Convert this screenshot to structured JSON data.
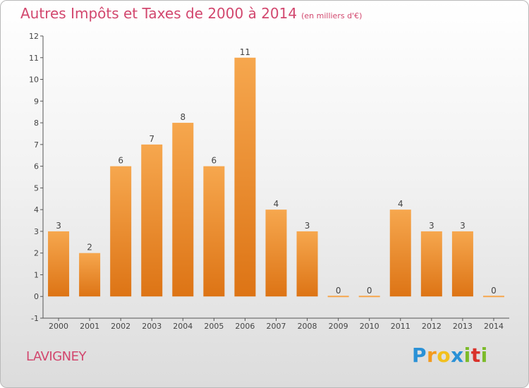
{
  "title": "Autres Impôts et Taxes de 2000 à 2014",
  "unit": "(en milliers d'€)",
  "commune": "LAVIGNEY",
  "logo": {
    "p": "P",
    "r": "r",
    "o": "o",
    "x": "x",
    "i": "i",
    "t": "t",
    "i2": "i"
  },
  "colors": {
    "bar_top": "#f6a74e",
    "bar_bottom": "#dd7415",
    "title": "#d2476e"
  },
  "chart_data": {
    "type": "bar",
    "title": "Autres Impôts et Taxes de 2000 à 2014",
    "subtitle": "(en milliers d'€)",
    "xlabel": "",
    "ylabel": "",
    "ylim": [
      -1,
      12
    ],
    "yticks": [
      "-1",
      "0",
      "1",
      "2",
      "3",
      "4",
      "5",
      "6",
      "7",
      "8",
      "9",
      "10",
      "11",
      "12"
    ],
    "grid": false,
    "categories": [
      "2000",
      "2001",
      "2002",
      "2003",
      "2004",
      "2005",
      "2006",
      "2007",
      "2008",
      "2009",
      "2010",
      "2011",
      "2012",
      "2013",
      "2014"
    ],
    "values": [
      3,
      2,
      6,
      7,
      8,
      6,
      11,
      4,
      3,
      0,
      0,
      4,
      3,
      3,
      0
    ]
  }
}
